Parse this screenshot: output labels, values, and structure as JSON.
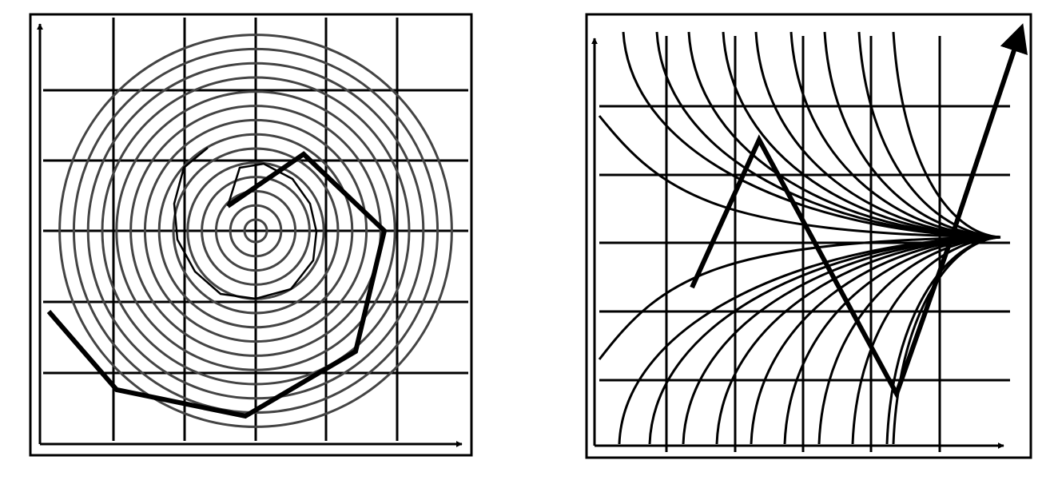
{
  "colors": {
    "background": "#ffffff",
    "ink": "#000000",
    "circle_ink": "#444444"
  },
  "panels": [
    {
      "name": "spiral-panel",
      "grid": {
        "columns": 6,
        "rows": 6
      },
      "concentric_circles": 14,
      "thin_polygon_turns": 1,
      "thick_polyline_vertices": 10,
      "axes": [
        "x",
        "y"
      ]
    },
    {
      "name": "flow-panel",
      "grid": {
        "columns": 6,
        "rows": 6
      },
      "converging_curves": 20,
      "thick_zigzag_vertices": 5,
      "axes": [
        "x",
        "y"
      ]
    }
  ]
}
